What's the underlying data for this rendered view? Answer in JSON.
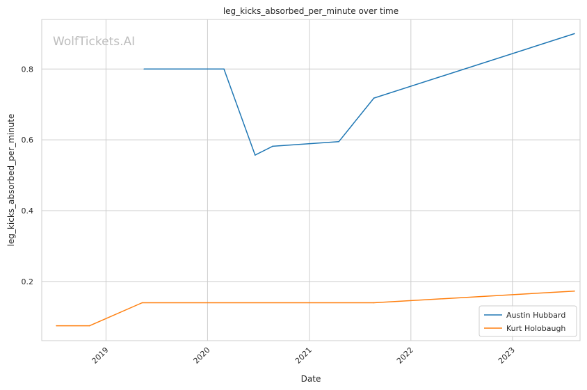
{
  "watermark": "WolfTickets.AI",
  "chart_data": {
    "type": "line",
    "title": "leg_kicks_absorbed_per_minute over time",
    "xlabel": "Date",
    "ylabel": "leg_kicks_absorbed_per_minute",
    "x_ticks": [
      "2019",
      "2020",
      "2021",
      "2022",
      "2023"
    ],
    "y_ticks": [
      "0.2",
      "0.4",
      "0.6",
      "0.8"
    ],
    "xlim": [
      "2018-05-15",
      "2023-09-01"
    ],
    "ylim": [
      0.033,
      0.94
    ],
    "grid": true,
    "legend_position": "lower-right",
    "series": [
      {
        "name": "Austin Hubbard",
        "color": "#1f77b4",
        "points": [
          {
            "x": "2019-05-18",
            "y": 0.8
          },
          {
            "x": "2020-02-29",
            "y": 0.8
          },
          {
            "x": "2020-06-20",
            "y": 0.557
          },
          {
            "x": "2020-08-22",
            "y": 0.582
          },
          {
            "x": "2021-04-17",
            "y": 0.595
          },
          {
            "x": "2021-08-21",
            "y": 0.718
          },
          {
            "x": "2023-08-12",
            "y": 0.9
          }
        ]
      },
      {
        "name": "Kurt Holobaugh",
        "color": "#ff7f0e",
        "points": [
          {
            "x": "2018-07-07",
            "y": 0.075
          },
          {
            "x": "2018-11-03",
            "y": 0.075
          },
          {
            "x": "2019-05-11",
            "y": 0.14
          },
          {
            "x": "2021-08-21",
            "y": 0.14
          },
          {
            "x": "2023-08-12",
            "y": 0.173
          }
        ]
      }
    ]
  }
}
